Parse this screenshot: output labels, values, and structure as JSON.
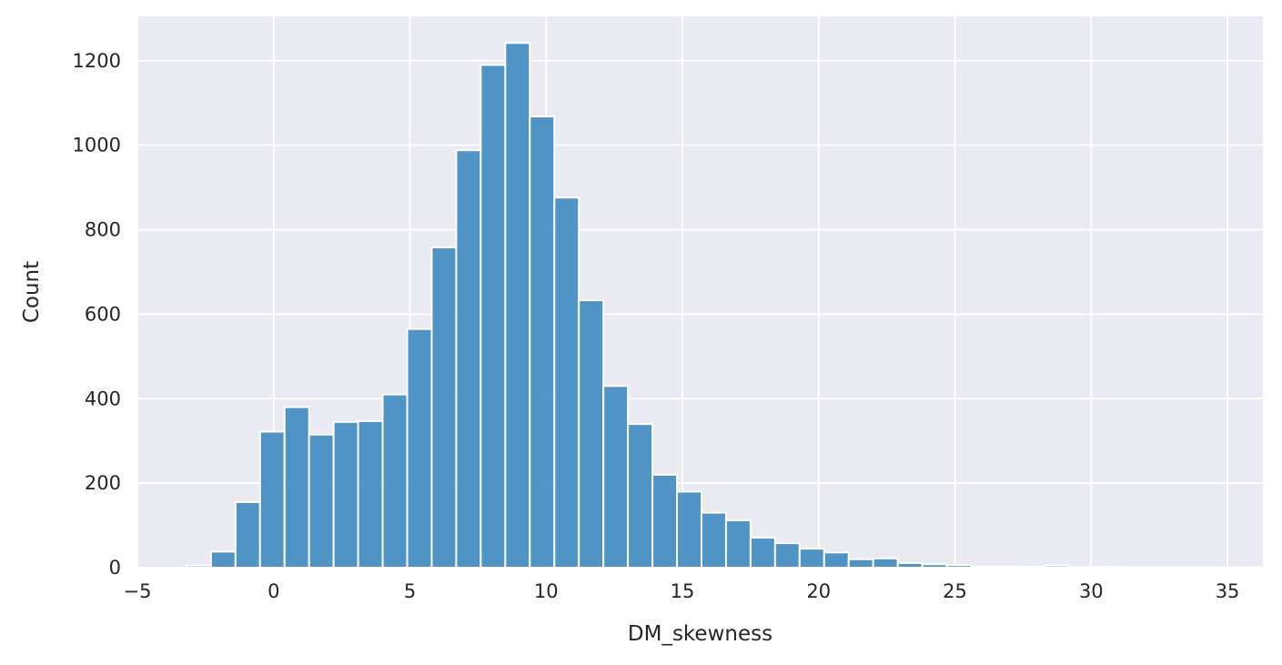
{
  "chart_data": {
    "type": "bar",
    "subtype": "histogram",
    "title": "",
    "xlabel": "DM_skewness",
    "ylabel": "Count",
    "xlim": [
      -5,
      36.3
    ],
    "ylim": [
      0,
      1305
    ],
    "x_ticks": [
      -5,
      0,
      5,
      10,
      15,
      20,
      25,
      30,
      35
    ],
    "x_tick_labels": [
      "−5",
      "0",
      "5",
      "10",
      "15",
      "20",
      "25",
      "30",
      "35"
    ],
    "y_ticks": [
      0,
      200,
      400,
      600,
      800,
      1000,
      1200
    ],
    "y_tick_labels": [
      "0",
      "200",
      "400",
      "600",
      "800",
      "1000",
      "1200"
    ],
    "grid": true,
    "legend": "none",
    "background_color": "#eaeaf2",
    "bar_color": "#3f8bc1",
    "bin_start": -3.2,
    "bin_width": 0.9,
    "values": [
      5,
      38,
      155,
      322,
      380,
      315,
      345,
      347,
      410,
      565,
      758,
      988,
      1190,
      1242,
      1068,
      876,
      633,
      430,
      340,
      220,
      180,
      130,
      112,
      71,
      58,
      45,
      36,
      20,
      22,
      11,
      8,
      6,
      3,
      3,
      2,
      5,
      1,
      2,
      1,
      1,
      1,
      1,
      1,
      1
    ]
  }
}
